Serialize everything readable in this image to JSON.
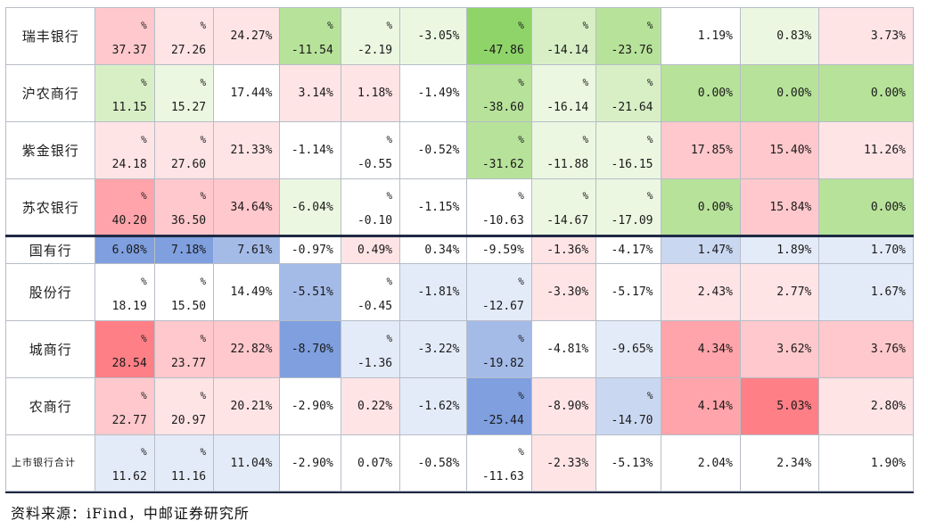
{
  "colors": {
    "neutral": "#ffffff",
    "green_strong": "#8fd468",
    "green_mid": "#b7e29a",
    "green_light": "#d8efc6",
    "green_pale": "#ebf7e1",
    "red_strong": "#ff7f86",
    "red_mid": "#ffa4aa",
    "red_light": "#ffc8cc",
    "red_pale": "#ffe4e6",
    "blue_strong": "#7f9fdf",
    "blue_mid": "#a4bbe8",
    "blue_light": "#cad7f1",
    "blue_pale": "#e4ebf8"
  },
  "rows": [
    {
      "name": "瑞丰银行",
      "h": 64,
      "cells": [
        {
          "t": "37.37",
          "b": "%",
          "c": "red_light"
        },
        {
          "t": "27.26",
          "b": "%",
          "c": "red_pale"
        },
        {
          "t": "24.27%",
          "c": "red_pale"
        },
        {
          "t": "-11.54",
          "b": "%",
          "c": "green_mid"
        },
        {
          "t": "-2.19",
          "b": "%",
          "c": "green_pale"
        },
        {
          "t": "-3.05%",
          "c": "green_pale"
        },
        {
          "t": "-47.86",
          "b": "%",
          "c": "green_strong"
        },
        {
          "t": "-14.14",
          "b": "%",
          "c": "green_light"
        },
        {
          "t": "-23.76",
          "b": "%",
          "c": "green_mid"
        },
        {
          "t": "1.19%",
          "c": "neutral"
        },
        {
          "t": "0.83%",
          "c": "green_pale"
        },
        {
          "t": "3.73%",
          "c": "red_pale"
        }
      ]
    },
    {
      "name": "沪农商行",
      "h": 64,
      "cells": [
        {
          "t": "11.15",
          "b": "%",
          "c": "green_light"
        },
        {
          "t": "15.27",
          "b": "%",
          "c": "green_pale"
        },
        {
          "t": "17.44%",
          "c": "neutral"
        },
        {
          "t": "3.14%",
          "c": "red_pale"
        },
        {
          "t": "1.18%",
          "c": "red_pale"
        },
        {
          "t": "-1.49%",
          "c": "neutral"
        },
        {
          "t": "-38.60",
          "b": "%",
          "c": "green_mid"
        },
        {
          "t": "-16.14",
          "b": "%",
          "c": "green_pale"
        },
        {
          "t": "-21.64",
          "b": "%",
          "c": "green_light"
        },
        {
          "t": "0.00%",
          "c": "green_mid"
        },
        {
          "t": "0.00%",
          "c": "green_mid"
        },
        {
          "t": "0.00%",
          "c": "green_mid"
        }
      ]
    },
    {
      "name": "紫金银行",
      "h": 64,
      "cells": [
        {
          "t": "24.18",
          "b": "%",
          "c": "red_pale"
        },
        {
          "t": "27.60",
          "b": "%",
          "c": "red_pale"
        },
        {
          "t": "21.33%",
          "c": "red_pale"
        },
        {
          "t": "-1.14%",
          "c": "neutral"
        },
        {
          "t": "-0.55",
          "b": "%",
          "c": "neutral"
        },
        {
          "t": "-0.52%",
          "c": "neutral"
        },
        {
          "t": "-31.62",
          "b": "%",
          "c": "green_mid"
        },
        {
          "t": "-11.88",
          "b": "%",
          "c": "green_pale"
        },
        {
          "t": "-16.15",
          "b": "%",
          "c": "green_pale"
        },
        {
          "t": "17.85%",
          "c": "red_light"
        },
        {
          "t": "15.40%",
          "c": "red_light"
        },
        {
          "t": "11.26%",
          "c": "red_pale"
        }
      ]
    },
    {
      "name": "苏农银行",
      "h": 64,
      "cells": [
        {
          "t": "40.20",
          "b": "%",
          "c": "red_mid"
        },
        {
          "t": "36.50",
          "b": "%",
          "c": "red_light"
        },
        {
          "t": "34.64%",
          "c": "red_light"
        },
        {
          "t": "-6.04%",
          "c": "green_pale"
        },
        {
          "t": "-0.10",
          "b": "%",
          "c": "neutral"
        },
        {
          "t": "-1.15%",
          "c": "neutral"
        },
        {
          "t": "-10.63",
          "b": "%",
          "c": "neutral"
        },
        {
          "t": "-14.67",
          "b": "%",
          "c": "green_pale"
        },
        {
          "t": "-17.09",
          "b": "%",
          "c": "green_pale"
        },
        {
          "t": "0.00%",
          "c": "green_mid"
        },
        {
          "t": "15.84%",
          "c": "red_light"
        },
        {
          "t": "0.00%",
          "c": "green_mid"
        }
      ]
    },
    {
      "name": "国有行",
      "h": 31,
      "sep": true,
      "cells": [
        {
          "t": "6.08%",
          "c": "blue_strong"
        },
        {
          "t": "7.18%",
          "c": "blue_strong"
        },
        {
          "t": "7.61%",
          "c": "blue_mid"
        },
        {
          "t": "-0.97%",
          "c": "neutral"
        },
        {
          "t": "0.49%",
          "c": "red_pale"
        },
        {
          "t": "0.34%",
          "c": "neutral"
        },
        {
          "t": "-9.59%",
          "c": "neutral"
        },
        {
          "t": "-1.36%",
          "c": "red_pale"
        },
        {
          "t": "-4.17%",
          "c": "neutral"
        },
        {
          "t": "1.47%",
          "c": "blue_light"
        },
        {
          "t": "1.89%",
          "c": "blue_pale"
        },
        {
          "t": "1.70%",
          "c": "blue_pale"
        }
      ]
    },
    {
      "name": "股份行",
      "h": 64,
      "cells": [
        {
          "t": "18.19",
          "b": "%",
          "c": "neutral"
        },
        {
          "t": "15.50",
          "b": "%",
          "c": "neutral"
        },
        {
          "t": "14.49%",
          "c": "neutral"
        },
        {
          "t": "-5.51%",
          "c": "blue_mid"
        },
        {
          "t": "-0.45",
          "b": "%",
          "c": "neutral"
        },
        {
          "t": "-1.81%",
          "c": "blue_pale"
        },
        {
          "t": "-12.67",
          "b": "%",
          "c": "blue_pale"
        },
        {
          "t": "-3.30%",
          "c": "red_pale"
        },
        {
          "t": "-5.17%",
          "c": "neutral"
        },
        {
          "t": "2.43%",
          "c": "red_pale"
        },
        {
          "t": "2.77%",
          "c": "red_pale"
        },
        {
          "t": "1.67%",
          "c": "blue_pale"
        }
      ]
    },
    {
      "name": "城商行",
      "h": 64,
      "cells": [
        {
          "t": "28.54",
          "b": "%",
          "c": "red_strong"
        },
        {
          "t": "23.77",
          "b": "%",
          "c": "red_light"
        },
        {
          "t": "22.82%",
          "c": "red_light"
        },
        {
          "t": "-8.70%",
          "c": "blue_strong"
        },
        {
          "t": "-1.36",
          "b": "%",
          "c": "blue_pale"
        },
        {
          "t": "-3.22%",
          "c": "blue_pale"
        },
        {
          "t": "-19.82",
          "b": "%",
          "c": "blue_mid"
        },
        {
          "t": "-4.81%",
          "c": "neutral"
        },
        {
          "t": "-9.65%",
          "c": "blue_pale"
        },
        {
          "t": "4.34%",
          "c": "red_mid"
        },
        {
          "t": "3.62%",
          "c": "red_light"
        },
        {
          "t": "3.76%",
          "c": "red_light"
        }
      ]
    },
    {
      "name": "农商行",
      "h": 64,
      "cells": [
        {
          "t": "22.77",
          "b": "%",
          "c": "red_light"
        },
        {
          "t": "20.97",
          "b": "%",
          "c": "red_pale"
        },
        {
          "t": "20.21%",
          "c": "red_pale"
        },
        {
          "t": "-2.90%",
          "c": "neutral"
        },
        {
          "t": "0.22%",
          "c": "red_pale"
        },
        {
          "t": "-1.62%",
          "c": "blue_pale"
        },
        {
          "t": "-25.44",
          "b": "%",
          "c": "blue_strong"
        },
        {
          "t": "-8.90%",
          "c": "red_pale"
        },
        {
          "t": "-14.70",
          "b": "%",
          "c": "blue_light"
        },
        {
          "t": "4.14%",
          "c": "red_mid"
        },
        {
          "t": "5.03%",
          "c": "red_strong"
        },
        {
          "t": "2.80%",
          "c": "red_pale"
        }
      ]
    },
    {
      "name": "上市银行合计",
      "h": 63,
      "small": true,
      "cells": [
        {
          "t": "11.62",
          "b": "%",
          "c": "blue_pale"
        },
        {
          "t": "11.16",
          "b": "%",
          "c": "blue_pale"
        },
        {
          "t": "11.04%",
          "c": "blue_pale"
        },
        {
          "t": "-2.90%",
          "c": "neutral"
        },
        {
          "t": "0.07%",
          "c": "neutral"
        },
        {
          "t": "-0.58%",
          "c": "neutral"
        },
        {
          "t": "-11.63",
          "b": "%",
          "c": "neutral"
        },
        {
          "t": "-2.33%",
          "c": "red_pale"
        },
        {
          "t": "-5.13%",
          "c": "neutral"
        },
        {
          "t": "2.04%",
          "c": "neutral"
        },
        {
          "t": "2.34%",
          "c": "neutral"
        },
        {
          "t": "1.90%",
          "c": "neutral"
        }
      ]
    }
  ],
  "source_note": "资料来源：iFind，中邮证券研究所"
}
